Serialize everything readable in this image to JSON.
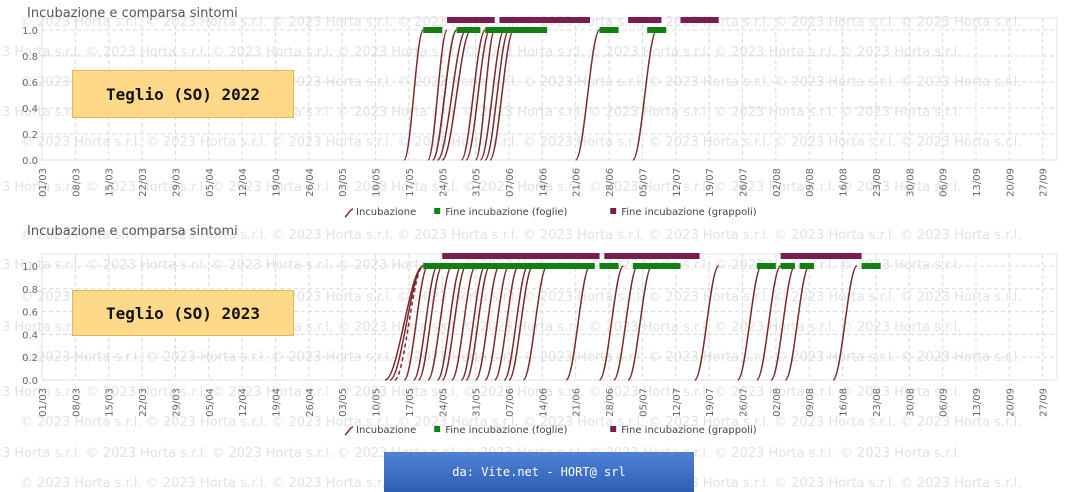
{
  "watermark": "© 2023 Horta s.r.l.",
  "credit": "da: Vite.net - HORT@ srl",
  "colors": {
    "incubation": "#7a2a2a",
    "leaves": "#118011",
    "bunches": "#7b1c4f",
    "grid": "#d8d8d8",
    "axis_text": "#666666"
  },
  "chart_data": [
    {
      "type": "line",
      "title": "Incubazione e comparsa sintomi",
      "badge": "Teglio (SO) 2022",
      "x_ticks": [
        "01/03",
        "08/03",
        "15/03",
        "22/03",
        "29/03",
        "05/04",
        "12/04",
        "19/04",
        "26/04",
        "03/05",
        "10/05",
        "17/05",
        "24/05",
        "31/05",
        "07/06",
        "14/06",
        "21/06",
        "28/06",
        "05/07",
        "12/07",
        "19/07",
        "26/07",
        "02/08",
        "09/08",
        "16/08",
        "23/08",
        "30/08",
        "06/09",
        "13/09",
        "20/09",
        "27/09"
      ],
      "y_ticks": [
        "1.0",
        "0.8",
        "0.6",
        "0.4",
        "0.2",
        "0.0"
      ],
      "ylim": [
        0,
        1
      ],
      "legend": [
        {
          "label": "Incubazione",
          "kind": "line"
        },
        {
          "label": "Fine incubazione (foglie)",
          "kind": "square-green"
        },
        {
          "label": "Fine incubazione (grappoli)",
          "kind": "square-purple"
        }
      ],
      "incubation_curves": [
        {
          "start": "16/05",
          "end": "20/05"
        },
        {
          "start": "21/05",
          "end": "25/05"
        },
        {
          "start": "22/05",
          "end": "27/05"
        },
        {
          "start": "22/05",
          "end": "27/05"
        },
        {
          "start": "23/05",
          "end": "29/05"
        },
        {
          "start": "24/05",
          "end": "30/05"
        },
        {
          "start": "28/05",
          "end": "02/06"
        },
        {
          "start": "29/05",
          "end": "03/06"
        },
        {
          "start": "31/05",
          "end": "04/06"
        },
        {
          "start": "01/06",
          "end": "06/06"
        },
        {
          "start": "02/06",
          "end": "07/06"
        },
        {
          "start": "03/06",
          "end": "08/06"
        },
        {
          "start": "21/06",
          "end": "26/06"
        },
        {
          "start": "03/07",
          "end": "08/07"
        }
      ],
      "leaf_bars": [
        {
          "start": "20/05",
          "end": "24/05"
        },
        {
          "start": "27/05",
          "end": "01/06"
        },
        {
          "start": "02/06",
          "end": "15/06"
        },
        {
          "start": "26/06",
          "end": "30/06"
        },
        {
          "start": "06/07",
          "end": "10/07"
        }
      ],
      "bunch_bars": [
        {
          "start": "25/05",
          "end": "04/06"
        },
        {
          "start": "05/06",
          "end": "24/06"
        },
        {
          "start": "02/07",
          "end": "09/07"
        },
        {
          "start": "13/07",
          "end": "21/07"
        }
      ]
    },
    {
      "type": "line",
      "title": "Incubazione e comparsa sintomi",
      "badge": "Teglio (SO) 2023",
      "x_ticks": [
        "01/03",
        "08/03",
        "15/03",
        "22/03",
        "29/03",
        "05/04",
        "12/04",
        "19/04",
        "26/04",
        "03/05",
        "10/05",
        "17/05",
        "24/05",
        "31/05",
        "07/06",
        "14/06",
        "21/06",
        "28/06",
        "05/07",
        "12/07",
        "19/07",
        "26/07",
        "02/08",
        "09/08",
        "16/08",
        "23/08",
        "30/08",
        "06/09",
        "13/09",
        "20/09",
        "27/09"
      ],
      "y_ticks": [
        "1.0",
        "0.8",
        "0.6",
        "0.4",
        "0.2",
        "0.0"
      ],
      "ylim": [
        0,
        1
      ],
      "legend": [
        {
          "label": "Incubazione",
          "kind": "line"
        },
        {
          "label": "Fine incubazione (foglie)",
          "kind": "square-green"
        },
        {
          "label": "Fine incubazione (grappoli)",
          "kind": "square-purple"
        }
      ],
      "incubation_curves": [
        {
          "start": "12/05",
          "end": "20/05"
        },
        {
          "start": "13/05",
          "end": "20/05"
        },
        {
          "start": "14/05",
          "end": "20/05",
          "dashed": true
        },
        {
          "start": "16/05",
          "end": "21/05"
        },
        {
          "start": "18/05",
          "end": "23/05"
        },
        {
          "start": "19/05",
          "end": "24/05"
        },
        {
          "start": "21/05",
          "end": "26/05"
        },
        {
          "start": "23/05",
          "end": "28/05"
        },
        {
          "start": "24/05",
          "end": "29/05"
        },
        {
          "start": "26/05",
          "end": "31/05"
        },
        {
          "start": "28/05",
          "end": "02/06"
        },
        {
          "start": "29/05",
          "end": "03/06"
        },
        {
          "start": "31/05",
          "end": "05/06"
        },
        {
          "start": "02/06",
          "end": "07/06"
        },
        {
          "start": "04/06",
          "end": "09/06"
        },
        {
          "start": "06/06",
          "end": "11/06"
        },
        {
          "start": "07/06",
          "end": "12/06"
        },
        {
          "start": "10/06",
          "end": "15/06"
        },
        {
          "start": "19/06",
          "end": "24/06"
        },
        {
          "start": "26/06",
          "end": "01/07"
        },
        {
          "start": "29/06",
          "end": "04/07"
        },
        {
          "start": "02/07",
          "end": "07/07"
        },
        {
          "start": "16/07",
          "end": "21/07"
        },
        {
          "start": "25/07",
          "end": "30/07"
        },
        {
          "start": "29/07",
          "end": "03/08"
        },
        {
          "start": "01/08",
          "end": "06/08"
        },
        {
          "start": "04/08",
          "end": "09/08"
        },
        {
          "start": "14/08",
          "end": "19/08"
        }
      ],
      "leaf_bars": [
        {
          "start": "20/05",
          "end": "25/06"
        },
        {
          "start": "26/06",
          "end": "30/06"
        },
        {
          "start": "03/07",
          "end": "13/07"
        },
        {
          "start": "29/07",
          "end": "02/08"
        },
        {
          "start": "03/08",
          "end": "06/08"
        },
        {
          "start": "07/08",
          "end": "10/08"
        },
        {
          "start": "20/08",
          "end": "24/08"
        }
      ],
      "bunch_bars": [
        {
          "start": "24/05",
          "end": "26/06"
        },
        {
          "start": "27/06",
          "end": "17/07"
        },
        {
          "start": "03/08",
          "end": "20/08"
        }
      ]
    }
  ]
}
